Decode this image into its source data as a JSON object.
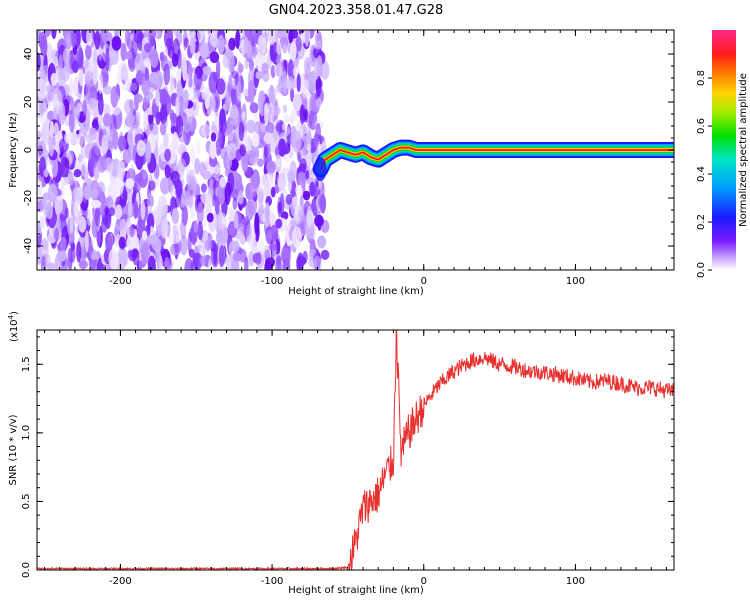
{
  "figure": {
    "title": "GN04.2023.358.01.47.G28"
  },
  "chart_data": [
    {
      "type": "heatmap",
      "xlabel": "Height of straight line (km)",
      "ylabel": "Frequency (Hz)",
      "xlim": [
        -255,
        165
      ],
      "ylim": [
        -50,
        50
      ],
      "x_ticks": [
        -200,
        -100,
        0,
        100
      ],
      "y_ticks": [
        -40,
        -20,
        0,
        20,
        40
      ],
      "colorbar": {
        "label": "Normalized spectral amplitude",
        "range": [
          0.0,
          1.0
        ],
        "ticks": [
          "0.0",
          "0.2",
          "0.4",
          "0.6",
          "0.8"
        ],
        "colormap": "white-purple-blue-cyan-green-yellow-red-magenta"
      },
      "signal_ridge": {
        "x": [
          -68,
          -65,
          -60,
          -55,
          -50,
          -45,
          -40,
          -35,
          -30,
          -25,
          -20,
          -15,
          -10,
          -5,
          0,
          20,
          50,
          100,
          165
        ],
        "freq": [
          -8,
          -4,
          -2,
          0,
          -1,
          -2,
          -1,
          -3,
          -4,
          -2,
          0,
          1,
          1,
          0,
          0,
          0,
          0,
          0,
          0
        ]
      },
      "noise_region": {
        "x_range": [
          -255,
          -65
        ],
        "freq_range": [
          -50,
          50
        ]
      },
      "grid": false
    },
    {
      "type": "line",
      "xlabel": "Height of straight line (km)",
      "ylabel": "SNR (10 * v/v)",
      "y_multiplier": "(x10",
      "y_multiplier_exp": "4",
      "y_multiplier_close": ")",
      "xlim": [
        -255,
        165
      ],
      "ylim": [
        0.0,
        1.75
      ],
      "x_ticks": [
        -200,
        -100,
        0,
        100
      ],
      "y_ticks": [
        "0.0",
        "0.5",
        "1.0",
        "1.5"
      ],
      "series": [
        {
          "color": "#e8302f",
          "x": [
            -255,
            -200,
            -150,
            -100,
            -60,
            -50,
            -45,
            -40,
            -35,
            -30,
            -25,
            -20,
            -18,
            -15,
            -10,
            -5,
            0,
            10,
            20,
            30,
            40,
            50,
            60,
            70,
            80,
            90,
            100,
            110,
            120,
            130,
            140,
            150,
            165
          ],
          "y": [
            0.01,
            0.01,
            0.01,
            0.01,
            0.01,
            0.02,
            0.2,
            0.45,
            0.5,
            0.55,
            0.7,
            0.8,
            1.75,
            0.85,
            1.0,
            1.1,
            1.2,
            1.35,
            1.45,
            1.52,
            1.55,
            1.5,
            1.48,
            1.45,
            1.44,
            1.42,
            1.4,
            1.37,
            1.38,
            1.36,
            1.33,
            1.33,
            1.3
          ],
          "noise": 0.06
        }
      ],
      "grid": false
    }
  ]
}
